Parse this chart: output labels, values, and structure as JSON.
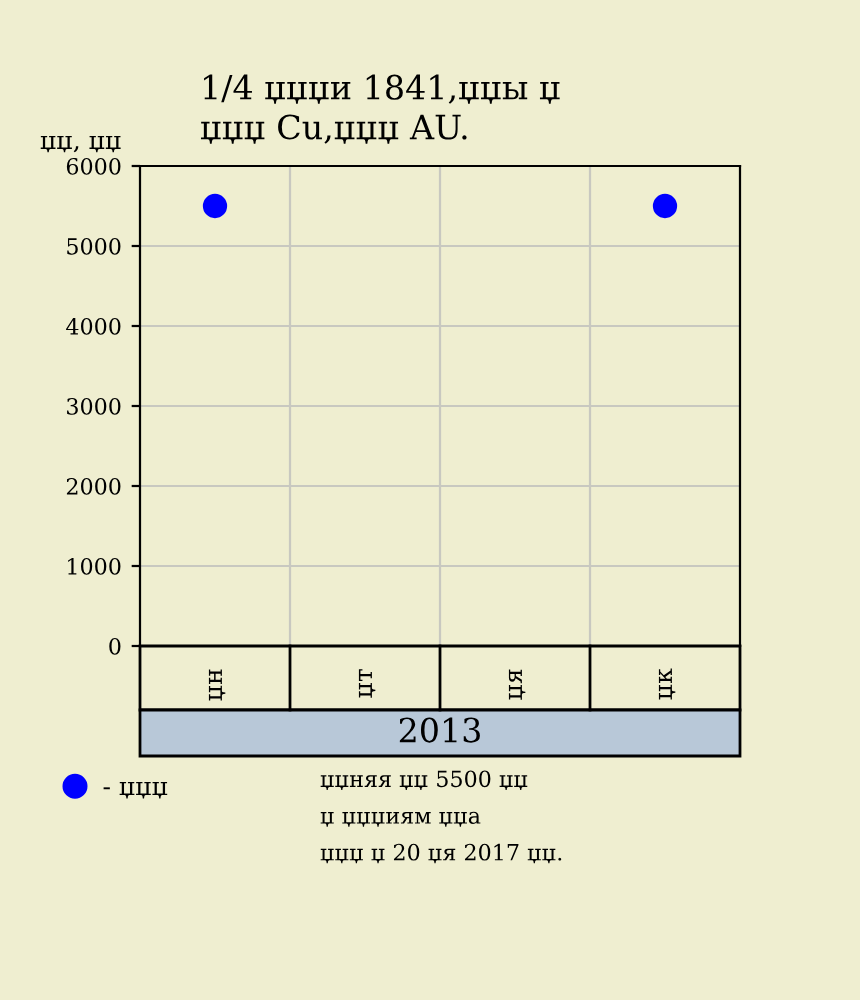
{
  "chart_data": {
    "type": "scatter",
    "title": "1/4 џџџи 1841,џџы џ\nџџџ Cu,џџџ AU.",
    "ylabel": "џџ, џџ",
    "xlabel": "2013",
    "categories": [
      "џн",
      "џт",
      "џя",
      "џк"
    ],
    "series": [
      {
        "name": "- џџџ",
        "color": "#0000ff",
        "values": [
          5500,
          null,
          null,
          5500
        ]
      }
    ],
    "ylim": [
      0,
      6000
    ],
    "yticks": [
      0,
      1000,
      2000,
      3000,
      4000,
      5000,
      6000
    ],
    "grid": true,
    "marker": "circle",
    "legend": "bottom left",
    "annotations": [
      "џџняя џџ 5500 џџ\nџ џџџиям џџа\nџџџ џ 20 џя 2017 џџ."
    ]
  }
}
